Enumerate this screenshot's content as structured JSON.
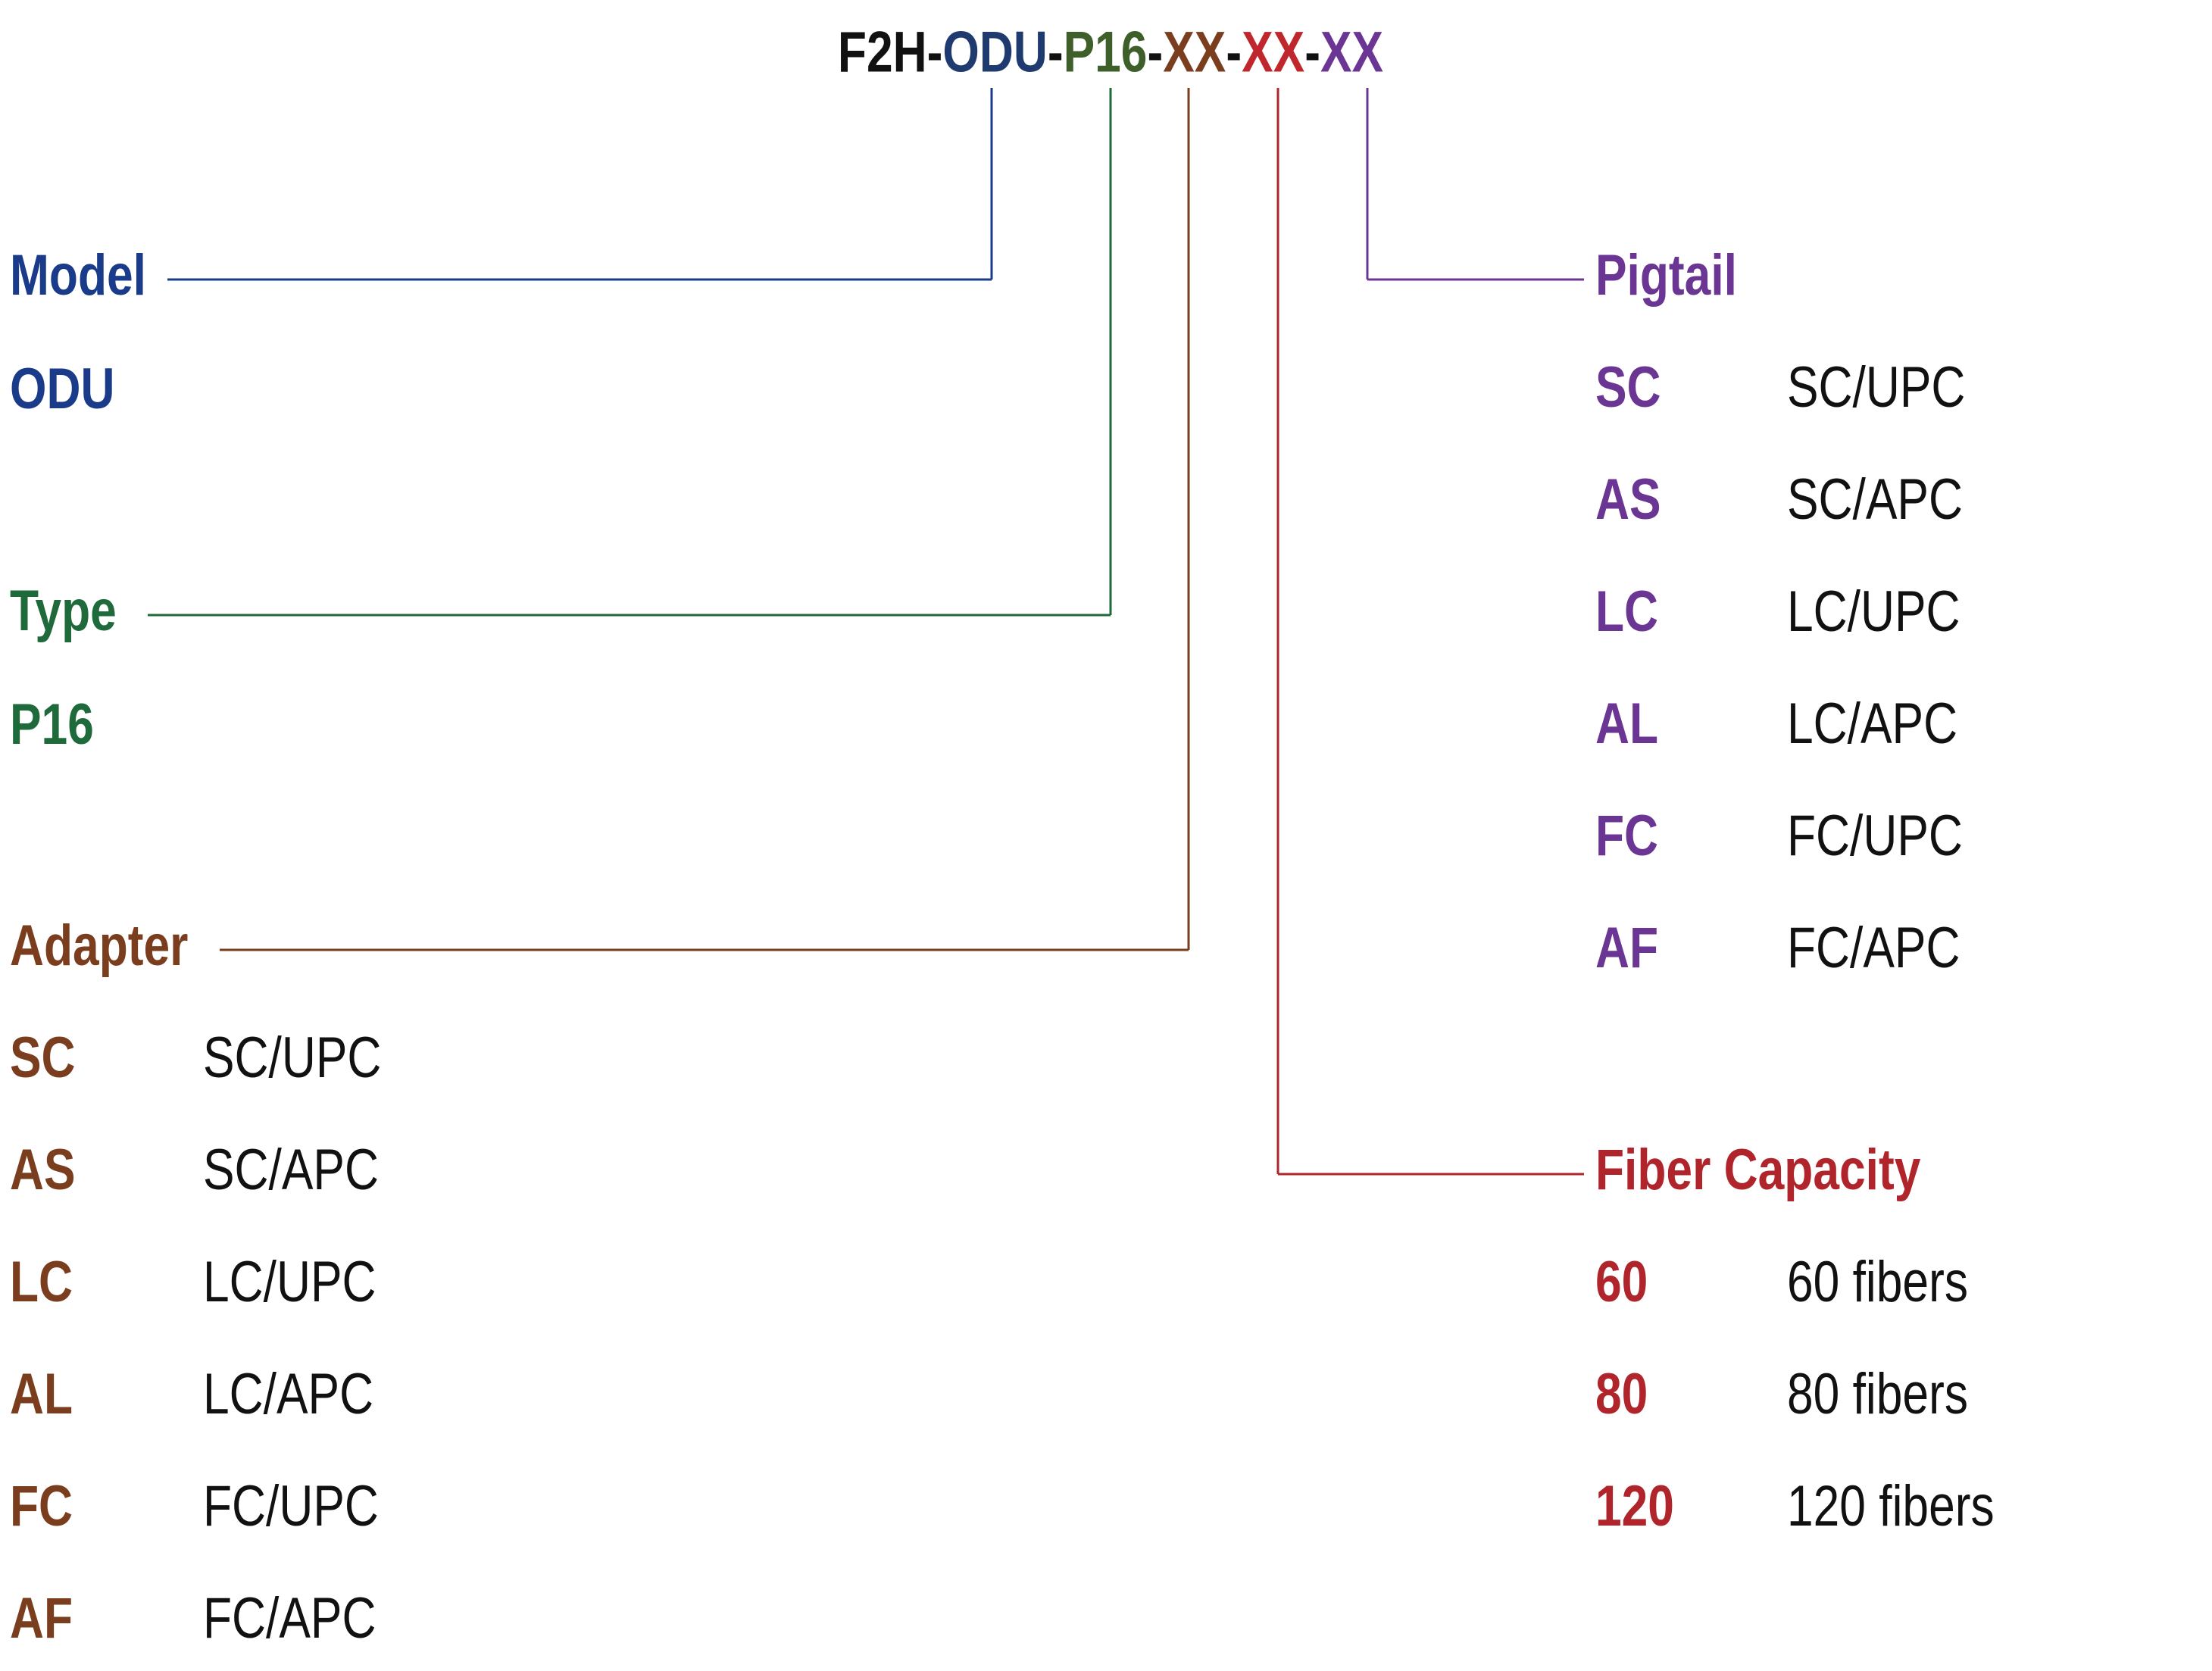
{
  "code": {
    "segments": [
      {
        "text": "F2H-",
        "color": "#111111"
      },
      {
        "text": "ODU",
        "color": "#1f3a6e"
      },
      {
        "text": "-",
        "color": "#111111"
      },
      {
        "text": "P16",
        "color": "#3f5f2a"
      },
      {
        "text": "-",
        "color": "#111111"
      },
      {
        "text": "XX",
        "color": "#7a3e1e"
      },
      {
        "text": "-",
        "color": "#111111"
      },
      {
        "text": "XX",
        "color": "#c0272d"
      },
      {
        "text": "-",
        "color": "#111111"
      },
      {
        "text": "XX",
        "color": "#6b3594"
      }
    ]
  },
  "groups": [
    {
      "title": "Model",
      "color": "#1a3a8a",
      "items": [
        {
          "code": "ODU"
        }
      ]
    },
    {
      "title": "Type",
      "color": "#1f6a3a",
      "items": [
        {
          "code": "P16"
        }
      ]
    },
    {
      "title": "Adapter",
      "color": "#7a3e1e",
      "items": [
        {
          "code": "SC",
          "description": "SC/UPC"
        },
        {
          "code": "AS",
          "description": "SC/APC"
        },
        {
          "code": "LC",
          "description": "LC/UPC"
        },
        {
          "code": "AL",
          "description": "LC/APC"
        },
        {
          "code": "FC",
          "description": "FC/UPC"
        },
        {
          "code": "AF",
          "description": "FC/APC"
        }
      ]
    },
    {
      "title": "Fiber Capacity",
      "color": "#b0252b",
      "items": [
        {
          "code": "60",
          "description": "60 fibers"
        },
        {
          "code": "80",
          "description": "80 fibers"
        },
        {
          "code": "120",
          "description": "120 fibers"
        }
      ]
    },
    {
      "title": "Pigtail",
      "color": "#6b3594",
      "items": [
        {
          "code": "SC",
          "description": "SC/UPC"
        },
        {
          "code": "AS",
          "description": "SC/APC"
        },
        {
          "code": "LC",
          "description": "LC/UPC"
        },
        {
          "code": "AL",
          "description": "LC/APC"
        },
        {
          "code": "FC",
          "description": "FC/UPC"
        },
        {
          "code": "AF",
          "description": "FC/APC"
        }
      ]
    }
  ]
}
